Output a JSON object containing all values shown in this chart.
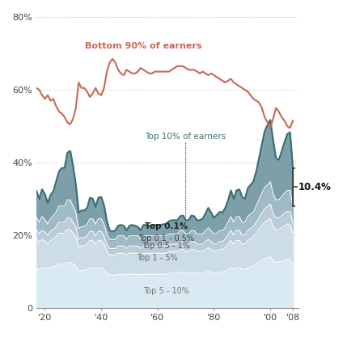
{
  "years": [
    1917,
    1918,
    1919,
    1920,
    1921,
    1922,
    1923,
    1924,
    1925,
    1926,
    1927,
    1928,
    1929,
    1930,
    1931,
    1932,
    1933,
    1934,
    1935,
    1936,
    1937,
    1938,
    1939,
    1940,
    1941,
    1942,
    1943,
    1944,
    1945,
    1946,
    1947,
    1948,
    1949,
    1950,
    1951,
    1952,
    1953,
    1954,
    1955,
    1956,
    1957,
    1958,
    1959,
    1960,
    1961,
    1962,
    1963,
    1964,
    1965,
    1966,
    1967,
    1968,
    1969,
    1970,
    1971,
    1972,
    1973,
    1974,
    1975,
    1976,
    1977,
    1978,
    1979,
    1980,
    1981,
    1982,
    1983,
    1984,
    1985,
    1986,
    1987,
    1988,
    1989,
    1990,
    1991,
    1992,
    1993,
    1994,
    1995,
    1996,
    1997,
    1998,
    1999,
    2000,
    2001,
    2002,
    2003,
    2004,
    2005,
    2006,
    2007,
    2008
  ],
  "top01": [
    7.2,
    6.5,
    7.5,
    7.0,
    5.8,
    6.5,
    6.8,
    8.5,
    9.5,
    10.5,
    10.5,
    13.0,
    13.5,
    11.0,
    7.5,
    4.5,
    4.5,
    4.5,
    4.5,
    5.8,
    5.5,
    4.8,
    5.8,
    6.0,
    5.2,
    3.5,
    2.5,
    2.2,
    2.5,
    2.8,
    3.0,
    2.8,
    2.5,
    2.8,
    3.0,
    2.8,
    2.5,
    2.5,
    3.0,
    3.0,
    2.8,
    2.8,
    3.0,
    3.0,
    3.0,
    3.2,
    3.2,
    3.5,
    3.8,
    3.8,
    3.8,
    4.0,
    4.2,
    3.8,
    3.8,
    4.2,
    4.0,
    3.8,
    3.8,
    4.2,
    4.8,
    5.5,
    5.0,
    4.5,
    5.0,
    5.2,
    5.0,
    5.5,
    6.0,
    7.2,
    6.5,
    7.2,
    7.5,
    7.0,
    6.5,
    7.8,
    8.0,
    8.5,
    9.5,
    11.5,
    13.5,
    15.5,
    16.5,
    17.0,
    14.5,
    11.5,
    11.0,
    12.5,
    14.0,
    15.5,
    16.0,
    10.4
  ],
  "top01to05": [
    3.5,
    3.2,
    3.8,
    3.5,
    3.2,
    3.5,
    3.8,
    4.0,
    4.5,
    4.5,
    4.5,
    5.0,
    5.0,
    4.5,
    4.0,
    3.0,
    3.0,
    3.0,
    3.2,
    3.5,
    3.5,
    3.2,
    3.5,
    3.5,
    3.2,
    2.8,
    2.5,
    2.5,
    2.5,
    2.8,
    2.8,
    2.8,
    2.5,
    2.8,
    2.8,
    2.8,
    2.8,
    2.5,
    2.8,
    2.8,
    2.8,
    2.8,
    2.8,
    2.8,
    2.8,
    2.8,
    2.8,
    2.8,
    2.8,
    2.8,
    2.8,
    3.0,
    3.0,
    2.8,
    2.8,
    3.0,
    3.0,
    2.8,
    2.8,
    2.8,
    3.0,
    3.2,
    3.0,
    2.8,
    3.0,
    3.0,
    3.0,
    3.2,
    3.5,
    3.8,
    3.5,
    3.8,
    3.8,
    3.5,
    3.5,
    3.8,
    4.0,
    4.0,
    4.5,
    5.0,
    5.5,
    5.8,
    6.0,
    6.2,
    5.5,
    5.0,
    5.0,
    5.2,
    5.5,
    5.8,
    5.8,
    4.5
  ],
  "top05to1": [
    2.5,
    2.3,
    2.5,
    2.5,
    2.3,
    2.5,
    2.5,
    2.8,
    3.0,
    3.0,
    3.0,
    3.2,
    3.2,
    3.0,
    2.8,
    2.2,
    2.3,
    2.3,
    2.3,
    2.5,
    2.5,
    2.3,
    2.5,
    2.5,
    2.3,
    2.0,
    1.8,
    1.8,
    1.8,
    2.0,
    2.0,
    2.0,
    1.8,
    2.0,
    2.0,
    2.0,
    2.0,
    1.8,
    2.0,
    2.0,
    2.0,
    2.0,
    2.0,
    2.0,
    2.0,
    2.0,
    2.0,
    2.0,
    2.0,
    2.0,
    2.0,
    2.2,
    2.2,
    2.0,
    2.0,
    2.2,
    2.2,
    2.0,
    2.0,
    2.0,
    2.2,
    2.3,
    2.2,
    2.0,
    2.0,
    2.2,
    2.2,
    2.3,
    2.5,
    2.8,
    2.5,
    2.8,
    2.8,
    2.5,
    2.5,
    2.8,
    2.8,
    2.8,
    3.0,
    3.2,
    3.5,
    3.8,
    3.8,
    4.0,
    3.5,
    3.2,
    3.2,
    3.3,
    3.5,
    3.5,
    3.5,
    3.0
  ],
  "top1to5": [
    8.0,
    7.5,
    7.8,
    7.5,
    7.0,
    7.5,
    7.8,
    8.0,
    8.5,
    8.5,
    8.5,
    9.0,
    9.0,
    8.5,
    8.0,
    6.5,
    6.8,
    6.8,
    7.0,
    7.5,
    7.5,
    7.0,
    7.5,
    7.5,
    7.0,
    6.0,
    5.5,
    5.5,
    5.5,
    5.8,
    5.8,
    5.8,
    5.5,
    5.8,
    5.8,
    5.8,
    5.8,
    5.5,
    5.8,
    5.8,
    5.8,
    5.8,
    5.8,
    5.8,
    5.8,
    5.8,
    5.8,
    6.0,
    6.0,
    6.0,
    6.0,
    6.2,
    6.2,
    6.0,
    6.0,
    6.2,
    6.2,
    6.0,
    6.0,
    6.0,
    6.2,
    6.5,
    6.2,
    6.0,
    6.0,
    6.2,
    6.2,
    6.5,
    7.0,
    7.5,
    7.0,
    7.5,
    7.5,
    7.0,
    7.0,
    7.5,
    7.8,
    8.0,
    8.5,
    9.0,
    9.5,
    10.0,
    10.2,
    10.5,
    9.5,
    9.0,
    9.0,
    9.2,
    9.5,
    9.8,
    9.8,
    8.5
  ],
  "top5to10": [
    11.0,
    10.5,
    11.0,
    10.8,
    10.5,
    11.0,
    11.2,
    11.5,
    12.0,
    12.0,
    12.0,
    12.5,
    12.5,
    12.0,
    11.5,
    10.0,
    10.2,
    10.2,
    10.5,
    11.0,
    11.0,
    10.5,
    11.0,
    11.0,
    10.5,
    9.5,
    9.0,
    9.0,
    9.0,
    9.2,
    9.2,
    9.2,
    9.0,
    9.2,
    9.2,
    9.2,
    9.2,
    9.0,
    9.2,
    9.2,
    9.2,
    9.2,
    9.2,
    9.2,
    9.2,
    9.2,
    9.2,
    9.5,
    9.5,
    9.5,
    9.5,
    9.8,
    9.8,
    9.5,
    9.5,
    9.8,
    9.8,
    9.5,
    9.5,
    9.5,
    9.8,
    10.0,
    9.8,
    9.5,
    9.5,
    9.8,
    9.8,
    10.0,
    10.5,
    11.0,
    10.5,
    11.0,
    11.0,
    10.5,
    10.5,
    11.0,
    11.2,
    11.5,
    12.0,
    12.5,
    13.0,
    13.5,
    13.8,
    14.0,
    13.0,
    12.5,
    12.5,
    12.8,
    13.0,
    13.2,
    13.2,
    12.0
  ],
  "bottom90": [
    60.5,
    60.0,
    58.5,
    57.5,
    58.5,
    57.0,
    57.5,
    55.5,
    54.0,
    53.5,
    52.5,
    51.0,
    50.5,
    52.0,
    55.0,
    62.0,
    60.5,
    60.5,
    59.5,
    58.0,
    59.0,
    60.5,
    59.0,
    58.5,
    60.5,
    65.0,
    67.5,
    68.5,
    67.5,
    65.5,
    64.5,
    64.0,
    65.5,
    65.0,
    64.5,
    64.5,
    65.0,
    66.0,
    65.5,
    65.0,
    64.5,
    64.5,
    65.0,
    65.0,
    65.0,
    65.0,
    65.0,
    65.0,
    65.5,
    66.0,
    66.5,
    66.5,
    66.5,
    66.0,
    65.5,
    65.5,
    65.5,
    65.0,
    64.5,
    65.0,
    64.5,
    64.0,
    64.5,
    64.0,
    63.5,
    63.0,
    62.5,
    62.0,
    62.5,
    63.0,
    62.0,
    61.5,
    61.0,
    60.5,
    60.0,
    59.5,
    58.5,
    57.5,
    57.0,
    56.5,
    55.0,
    52.5,
    51.0,
    49.5,
    52.0,
    55.0,
    54.0,
    52.5,
    51.5,
    50.0,
    49.5,
    51.5
  ],
  "xlim_left": 1917,
  "xlim_right": 2010,
  "ylim": [
    0,
    80
  ],
  "yticks": [
    0,
    20,
    40,
    60,
    80
  ],
  "xtick_years": [
    1920,
    1940,
    1960,
    1980,
    2000,
    2008
  ],
  "xtick_labels": [
    "'20",
    "'40",
    "'60",
    "'80",
    "'00",
    "'08"
  ],
  "color_bottom90": "#cc6655",
  "color_top10_line": "#3a7070",
  "color_top01": "#7d9faa",
  "color_top01to05": "#a0bac8",
  "color_top05to1": "#bacdd8",
  "color_top1to5": "#cddde8",
  "color_top5to10": "#daeaf2",
  "color_grid": "#bbbbbb",
  "color_spine": "#999999",
  "label_bottom90": "Bottom 90% of earners",
  "label_top10": "Top 10% of earners",
  "label_top01": "Top 0.1%",
  "label_top01to05": "Top 0.1 - 0.5%",
  "label_top05to1": "Top 0.5 - 1%",
  "label_top1to5": "Top 1 - 5%",
  "label_top5to10": "Top 5 - 10%",
  "annotation_10pct": "10.4%"
}
